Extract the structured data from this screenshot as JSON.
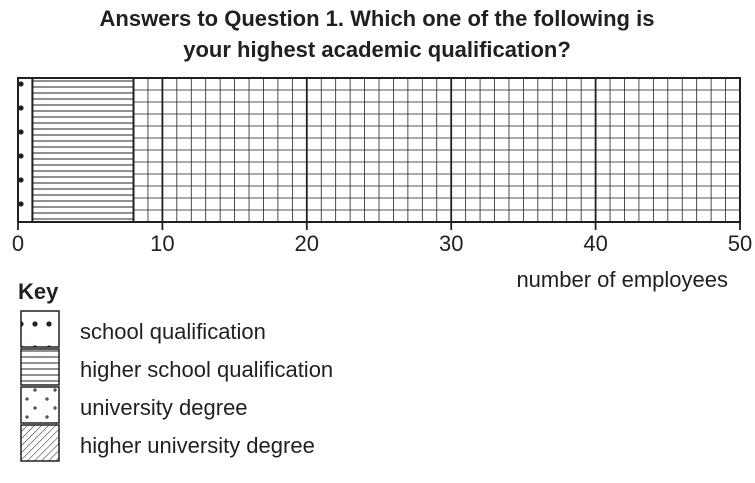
{
  "chart_data": {
    "type": "bar",
    "orientation": "horizontal",
    "stacked": true,
    "title": [
      "Answers to Question 1. Which one of the following is",
      "your highest academic qualification?"
    ],
    "xlabel": "number of employees",
    "legend_title": "Key",
    "xlim": [
      0,
      50
    ],
    "xticks": [
      0,
      10,
      20,
      30,
      40,
      50
    ],
    "grid": true,
    "series": [
      {
        "name": "school qualification",
        "pattern": "dots",
        "values": [
          1
        ]
      },
      {
        "name": "higher school qualification",
        "pattern": "horizontal-lines",
        "values": [
          7
        ]
      },
      {
        "name": "university degree",
        "pattern": "crosses",
        "values": [
          null
        ]
      },
      {
        "name": "higher university degree",
        "pattern": "diagonal-lines",
        "values": [
          null
        ]
      }
    ]
  }
}
